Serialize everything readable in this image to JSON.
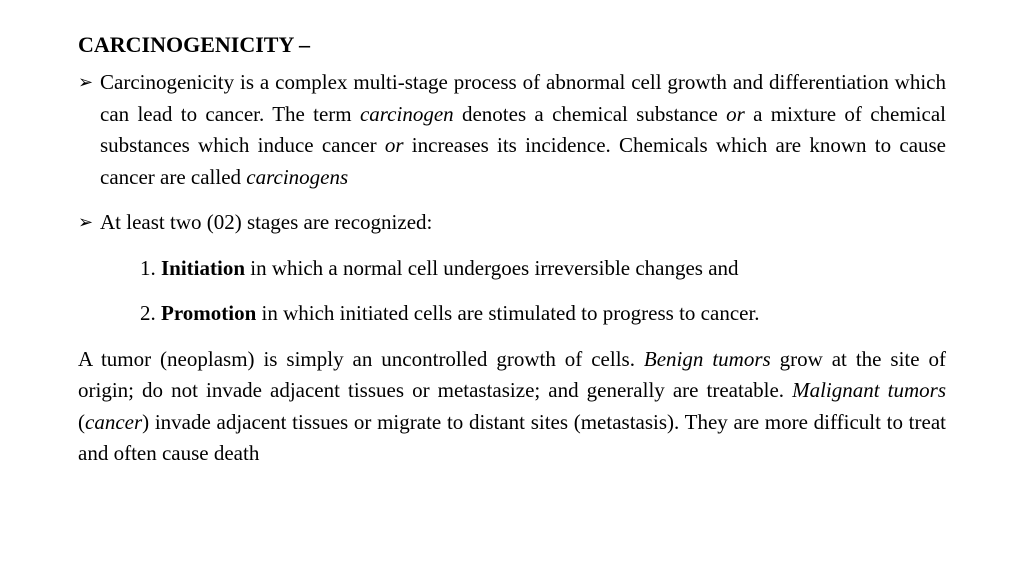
{
  "title": "CARCINOGENICITY –",
  "bullets": [
    {
      "segments": [
        {
          "t": "Carcinogenicity is a complex multi-stage process of abnormal cell growth and differentiation which can lead to cancer. The term ",
          "b": false,
          "i": false
        },
        {
          "t": "carcinogen",
          "b": false,
          "i": true
        },
        {
          "t": " denotes a chemical substance ",
          "b": false,
          "i": false
        },
        {
          "t": "or",
          "b": false,
          "i": true
        },
        {
          "t": " a mixture of chemical substances which induce cancer ",
          "b": false,
          "i": false
        },
        {
          "t": "or",
          "b": false,
          "i": true
        },
        {
          "t": " increases its incidence. Chemicals which are known to cause cancer are called ",
          "b": false,
          "i": false
        },
        {
          "t": "carcinogens",
          "b": false,
          "i": true
        }
      ]
    },
    {
      "segments": [
        {
          "t": "At least two (02) stages are recognized:",
          "b": false,
          "i": false
        }
      ]
    }
  ],
  "numbered": [
    {
      "num": "1. ",
      "segments": [
        {
          "t": "Initiation",
          "b": true,
          "i": false
        },
        {
          "t": " in which a normal cell undergoes irreversible changes and",
          "b": false,
          "i": false
        }
      ]
    },
    {
      "num": "2. ",
      "segments": [
        {
          "t": "Promotion",
          "b": true,
          "i": false
        },
        {
          "t": " in which initiated cells are stimulated to progress to cancer.",
          "b": false,
          "i": false
        }
      ]
    }
  ],
  "paragraph": {
    "segments": [
      {
        "t": "A tumor (neoplasm) is simply an uncontrolled growth of cells. ",
        "b": false,
        "i": false
      },
      {
        "t": "Benign tumors",
        "b": false,
        "i": true
      },
      {
        "t": " grow at the site of origin; do not invade adjacent tissues or metastasize; and generally are treatable. ",
        "b": false,
        "i": false
      },
      {
        "t": "Malignant tumors",
        "b": false,
        "i": true
      },
      {
        "t": " (",
        "b": false,
        "i": false
      },
      {
        "t": "cancer",
        "b": false,
        "i": true
      },
      {
        "t": ") invade adjacent tissues or migrate to distant sites (metastasis). They are more difficult to treat and often cause death",
        "b": false,
        "i": false
      }
    ]
  },
  "bullet_glyph": "➢"
}
